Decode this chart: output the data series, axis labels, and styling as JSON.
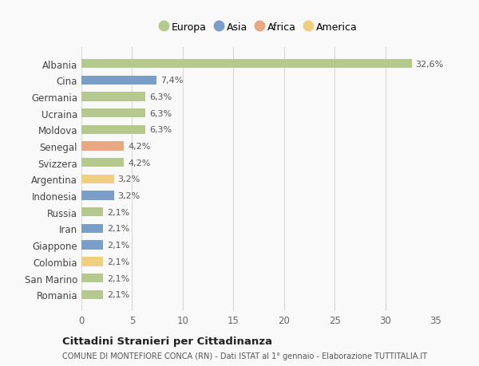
{
  "countries": [
    "Albania",
    "Cina",
    "Germania",
    "Ucraina",
    "Moldova",
    "Senegal",
    "Svizzera",
    "Argentina",
    "Indonesia",
    "Russia",
    "Iran",
    "Giappone",
    "Colombia",
    "San Marino",
    "Romania"
  ],
  "values": [
    32.6,
    7.4,
    6.3,
    6.3,
    6.3,
    4.2,
    4.2,
    3.2,
    3.2,
    2.1,
    2.1,
    2.1,
    2.1,
    2.1,
    2.1
  ],
  "labels": [
    "32,6%",
    "7,4%",
    "6,3%",
    "6,3%",
    "6,3%",
    "4,2%",
    "4,2%",
    "3,2%",
    "3,2%",
    "2,1%",
    "2,1%",
    "2,1%",
    "2,1%",
    "2,1%",
    "2,1%"
  ],
  "continents": [
    "Europa",
    "Asia",
    "Europa",
    "Europa",
    "Europa",
    "Africa",
    "Europa",
    "America",
    "Asia",
    "Europa",
    "Asia",
    "Asia",
    "America",
    "Europa",
    "Europa"
  ],
  "continent_colors": {
    "Europa": "#b5c98e",
    "Asia": "#7b9ec9",
    "Africa": "#e8a882",
    "America": "#f0d080"
  },
  "legend_order": [
    "Europa",
    "Asia",
    "Africa",
    "America"
  ],
  "title": "Cittadini Stranieri per Cittadinanza",
  "subtitle": "COMUNE DI MONTEFIORE CONCA (RN) - Dati ISTAT al 1° gennaio - Elaborazione TUTTITALIA.IT",
  "xlim": [
    0,
    35
  ],
  "xticks": [
    0,
    5,
    10,
    15,
    20,
    25,
    30,
    35
  ],
  "background_color": "#f9f9f9",
  "grid_color": "#d8d8d8"
}
